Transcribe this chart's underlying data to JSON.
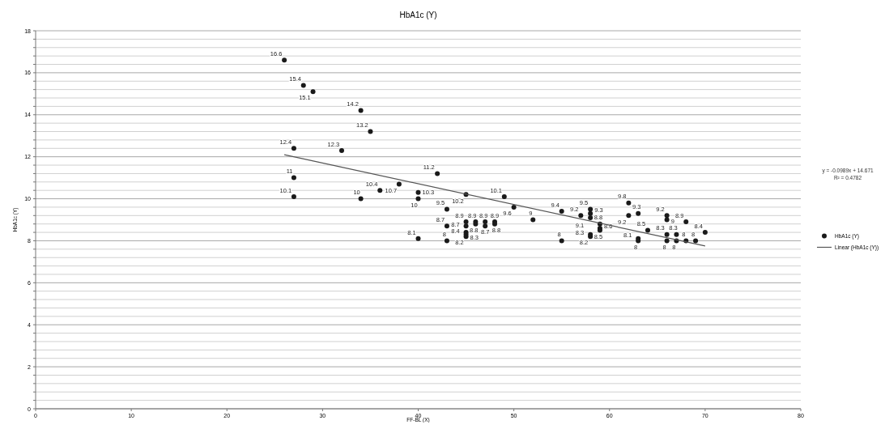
{
  "chart_data": {
    "type": "scatter",
    "title": "HbA1c (Y)",
    "xlabel": "FF-BL (X)",
    "ylabel": "HbA1c (Y)",
    "xlim": [
      0,
      80
    ],
    "xticks": [
      0,
      10,
      20,
      30,
      40,
      50,
      60,
      70,
      80
    ],
    "ylim": [
      0,
      18
    ],
    "yticks": [
      0,
      {
        "value": 0.4,
        "label": null
      },
      {
        "value": 0.8,
        "label": null
      },
      {
        "value": 1.2,
        "label": null
      },
      {
        "value": 1.6,
        "label": null
      },
      2,
      {
        "value": 2.4,
        "label": null
      },
      {
        "value": 2.8,
        "label": null
      },
      {
        "value": 3.2,
        "label": null
      },
      {
        "value": 3.6,
        "label": null
      },
      4,
      {
        "value": 4.4,
        "label": null
      },
      {
        "value": 4.8,
        "label": null
      },
      {
        "value": 5.2,
        "label": null
      },
      {
        "value": 5.6,
        "label": null
      },
      6,
      {
        "value": 6.4,
        "label": null
      },
      {
        "value": 6.8,
        "label": null
      },
      {
        "value": 7.2,
        "label": null
      },
      {
        "value": 7.6,
        "label": null
      },
      8,
      {
        "value": 8.4,
        "label": null
      },
      {
        "value": 8.8,
        "label": null
      },
      {
        "value": 9.2,
        "label": null
      },
      {
        "value": 9.6,
        "label": null
      },
      10,
      {
        "value": 10.4,
        "label": null
      },
      {
        "value": 10.8,
        "label": null
      },
      {
        "value": 11.2,
        "label": null
      },
      {
        "value": 11.6,
        "label": null
      },
      12,
      {
        "value": 12.4,
        "label": null
      },
      {
        "value": 12.8,
        "label": null
      },
      {
        "value": 13.2,
        "label": null
      },
      {
        "value": 13.6,
        "label": null
      },
      14,
      {
        "value": 14.4,
        "label": null
      },
      {
        "value": 14.8,
        "label": null
      },
      {
        "value": 15.2,
        "label": null
      },
      {
        "value": 15.6,
        "label": null
      },
      16,
      {
        "value": 16.4,
        "label": null
      },
      {
        "value": 16.8,
        "label": null
      },
      {
        "value": 17.2,
        "label": null
      },
      {
        "value": 17.6,
        "label": null
      },
      18
    ],
    "grid": "y",
    "legend": "right",
    "marker": "circle",
    "annotations": [
      "y = -0.0989x + 14.671\nR² = 0.4782"
    ],
    "series": [
      {
        "name": "HbA1c (Y)",
        "type": "scatter",
        "color": "#1a1a1a",
        "x": [
          26,
          28,
          29,
          34,
          35,
          27,
          32,
          27,
          27,
          34,
          36,
          38,
          42,
          40,
          40,
          40,
          45,
          49,
          50,
          43,
          43,
          43,
          45,
          45,
          45,
          45,
          45,
          46,
          46,
          47,
          47,
          48,
          48,
          52,
          55,
          55,
          57,
          58,
          58,
          58,
          59,
          59,
          59,
          58,
          58,
          62,
          62,
          63,
          63,
          63,
          64,
          66,
          66,
          66,
          66,
          67,
          67,
          68,
          68,
          69,
          70
        ],
        "values": [
          16.6,
          15.4,
          15.1,
          14.2,
          13.2,
          12.4,
          12.3,
          11,
          10.1,
          10,
          10.4,
          10.7,
          11.2,
          10.3,
          10,
          8.1,
          10.2,
          10.1,
          9.6,
          9.5,
          8.7,
          8,
          8.9,
          8.7,
          8.4,
          8.3,
          8.2,
          8.9,
          8.8,
          8.9,
          8.7,
          8.9,
          8.8,
          9,
          9.4,
          8,
          9.2,
          9.5,
          9.3,
          9.1,
          8.8,
          8.6,
          8.5,
          8.3,
          8.2,
          9.8,
          9.2,
          9.3,
          8.1,
          8,
          8.5,
          9.2,
          9,
          8.3,
          8,
          8.3,
          8,
          8.9,
          8,
          8,
          8.4
        ],
        "value_labels": [
          "16.6",
          "15.4",
          "15.1",
          "14.2",
          "13.2",
          "12.4",
          "12.3",
          "11",
          "10.1",
          "10",
          "10.4",
          "10.7",
          "11.2",
          "10.3",
          "10",
          "8.1",
          "10.2",
          "10.1",
          "9.6",
          "9.5",
          "8.7",
          "8",
          "8.9",
          "8.7",
          "8.4",
          "8.3",
          "8.2",
          "8.9",
          "8.8",
          "8.9",
          "8.7",
          "8.9",
          "8.8",
          "9",
          "9.4",
          "8",
          "9.2",
          "9.5",
          "9.3",
          "9.1",
          "8.8",
          "8.6",
          "8.5",
          "8.3",
          "8.2",
          "9.8",
          "9.2",
          "9.3",
          "8.1",
          "8",
          "8.5",
          "9.2",
          "9",
          "8.3",
          "8",
          "8.3",
          "8",
          "8.9",
          "8",
          "8",
          "8.4"
        ]
      },
      {
        "name": "Linear (HbA1c (Y))",
        "type": "line",
        "color": "#555555",
        "line_style": "solid",
        "marker": "none",
        "x": [
          26,
          70
        ],
        "values": [
          12.1,
          7.75
        ]
      }
    ]
  }
}
